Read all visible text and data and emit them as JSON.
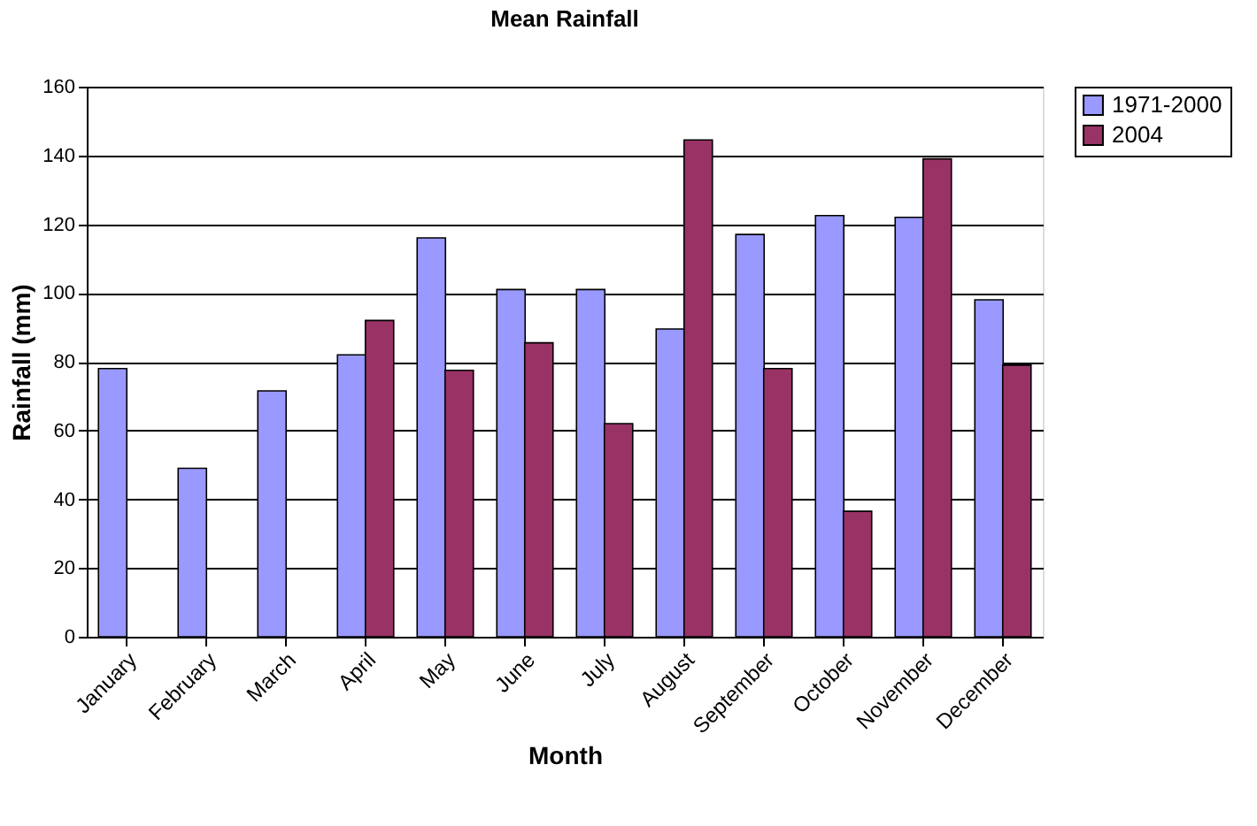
{
  "chart_data": {
    "type": "bar",
    "title": "Mean Rainfall",
    "xlabel": "Month",
    "ylabel": "Rainfall (mm)",
    "categories": [
      "January",
      "February",
      "March",
      "April",
      "May",
      "June",
      "July",
      "August",
      "September",
      "October",
      "November",
      "December"
    ],
    "series": [
      {
        "name": "1971-2000",
        "color": "#9999ff",
        "values": [
          78,
          49,
          71.5,
          82,
          116,
          101,
          101,
          89.5,
          117,
          122.5,
          122,
          98
        ]
      },
      {
        "name": "2004",
        "color": "#993366",
        "values": [
          null,
          null,
          null,
          92,
          77.5,
          85.5,
          62,
          144.5,
          78,
          36.5,
          139,
          79
        ]
      }
    ],
    "ylim": [
      0,
      160
    ],
    "yticks": [
      0,
      20,
      40,
      60,
      80,
      100,
      120,
      140,
      160
    ],
    "grid": "y",
    "legend": "right"
  }
}
